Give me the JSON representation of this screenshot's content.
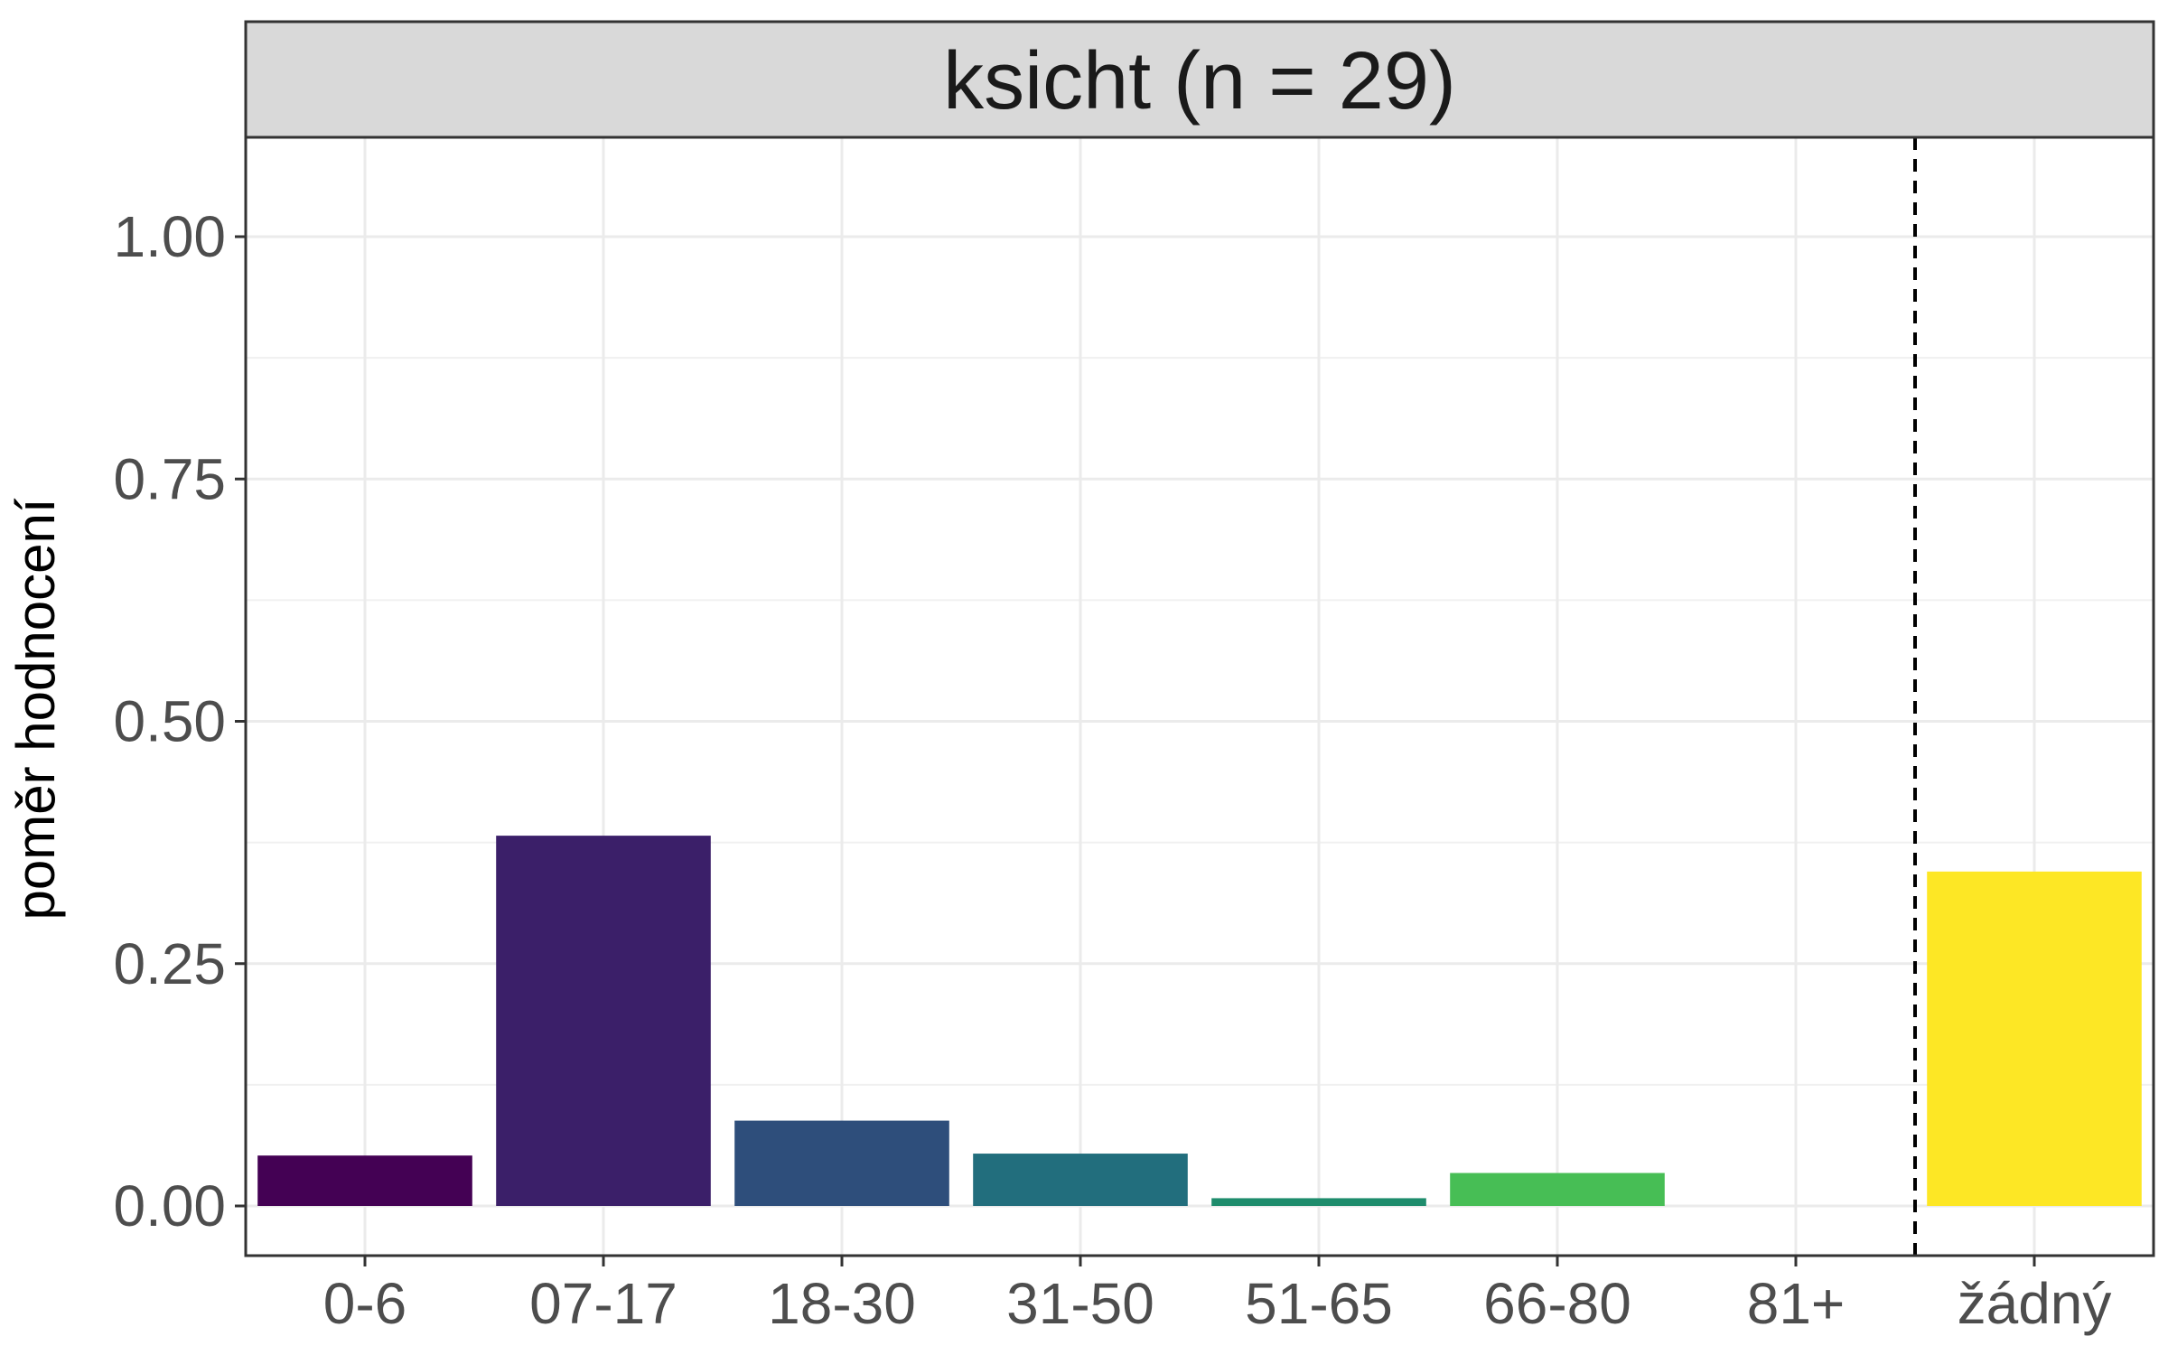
{
  "chart_data": {
    "type": "bar",
    "facet_title": "ksicht (n = 29)",
    "ylabel": "poměr hodnocení",
    "xlabel": "",
    "categories": [
      "0-6",
      "07-17",
      "18-30",
      "31-50",
      "51-65",
      "66-80",
      "81+",
      "žádný"
    ],
    "values": [
      0.052,
      0.382,
      0.088,
      0.054,
      0.008,
      0.034,
      0.0,
      0.345
    ],
    "colors": [
      "#440154",
      "#3B1F69",
      "#2E4E7B",
      "#226E7D",
      "#1E8C6C",
      "#47BE55",
      "#9CD63A",
      "#FDE725"
    ],
    "ylim": [
      -0.05,
      1.1
    ],
    "yticks": [
      "0.00",
      "0.25",
      "0.50",
      "0.75",
      "1.00"
    ],
    "ytick_values": [
      0,
      0.25,
      0.5,
      0.75,
      1.0
    ],
    "reference_line": {
      "style": "dashed",
      "position": "between 81+ and žádný"
    },
    "grid": true,
    "legend": "none"
  }
}
